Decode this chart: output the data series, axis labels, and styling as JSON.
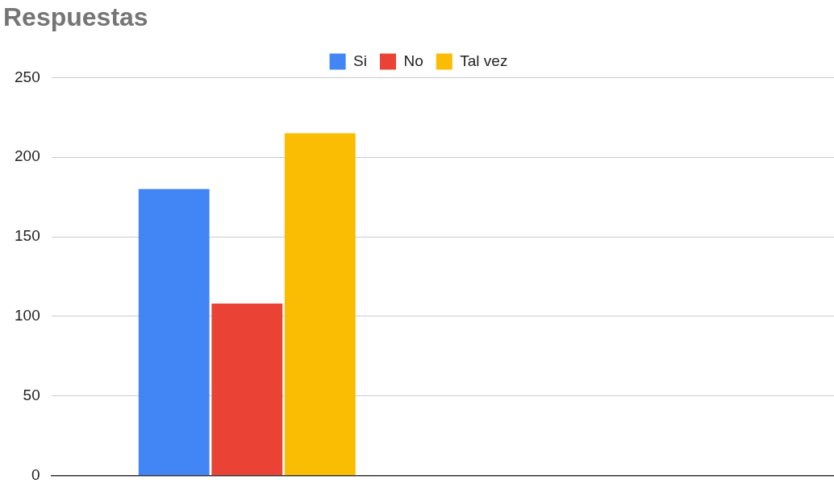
{
  "chart_data": {
    "type": "bar",
    "title": "Respuestas",
    "categories": [
      null,
      null
    ],
    "series": [
      {
        "name": "Si",
        "color": "#4285f4",
        "values": [
          180,
          null
        ]
      },
      {
        "name": "No",
        "color": "#ea4335",
        "values": [
          108,
          null
        ]
      },
      {
        "name": "Tal vez",
        "color": "#fbbc04",
        "values": [
          215,
          null
        ]
      }
    ],
    "ylim": [
      0,
      250
    ],
    "yticks": [
      0,
      50,
      100,
      150,
      200,
      250
    ],
    "grid": "y",
    "legend": "top",
    "tick_labels": "y"
  }
}
